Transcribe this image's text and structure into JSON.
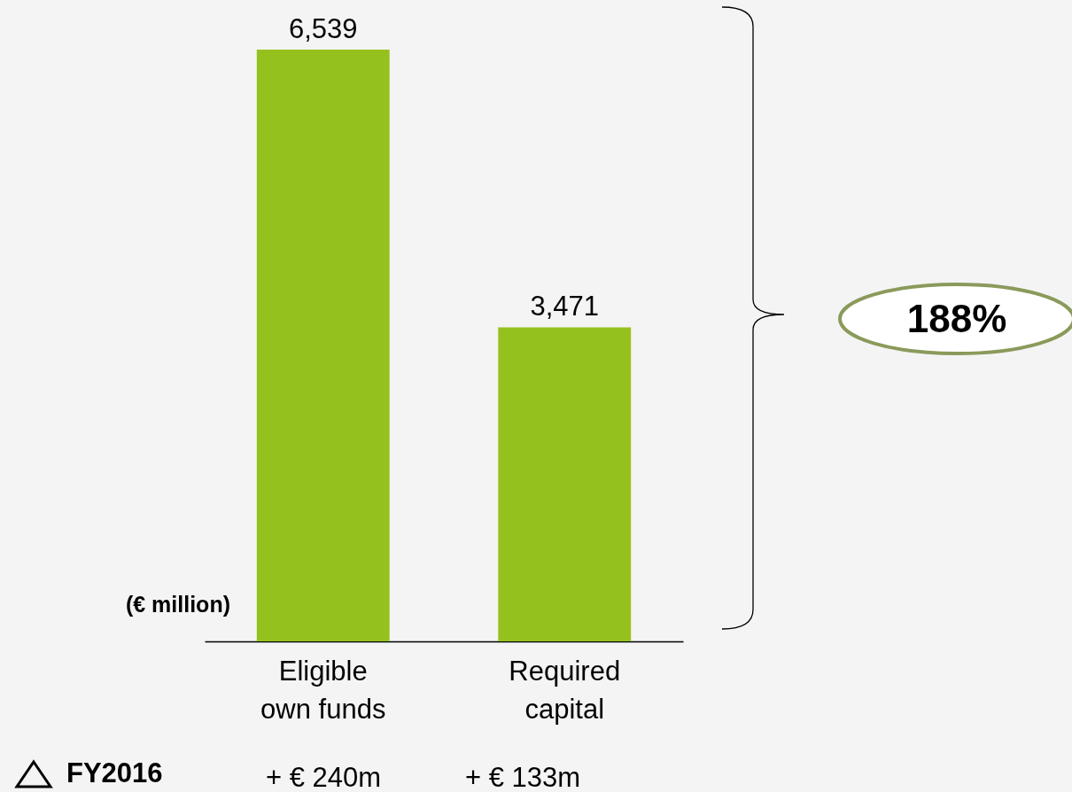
{
  "chart_data": {
    "type": "bar",
    "categories": [
      "Eligible own funds",
      "Required capital"
    ],
    "values": [
      6539,
      3471
    ],
    "color": "#95c11f",
    "value_labels": [
      "6,539",
      "3,471"
    ],
    "annotations": [
      "(€ million)",
      "188%",
      "FY2016",
      "+ € 240m",
      "+ € 133m"
    ]
  }
}
